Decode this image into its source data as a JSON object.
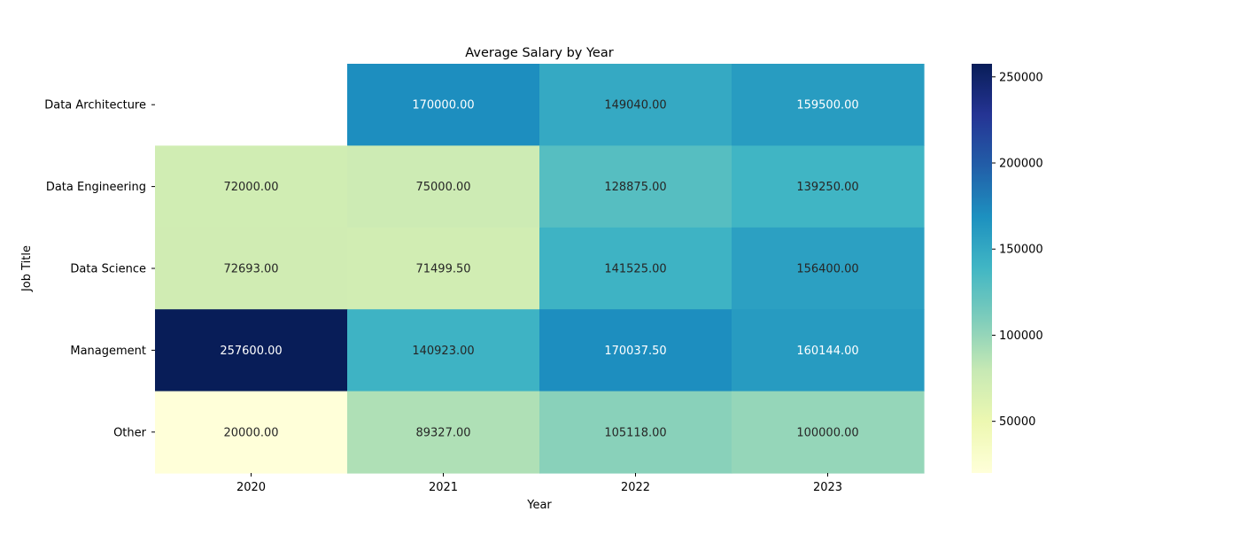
{
  "chart_data": {
    "type": "heatmap",
    "title": "Average Salary by Year",
    "xlabel": "Year",
    "ylabel": "Job Title",
    "x": [
      "2020",
      "2021",
      "2022",
      "2023"
    ],
    "y": [
      "Data Architecture",
      "Data Engineering",
      "Data Science",
      "Management",
      "Other"
    ],
    "values": [
      [
        null,
        170000.0,
        149040.0,
        159500.0
      ],
      [
        72000.0,
        75000.0,
        128875.0,
        139250.0
      ],
      [
        72693.0,
        71499.5,
        141525.0,
        156400.0
      ],
      [
        257600.0,
        140923.0,
        170037.5,
        160144.0
      ],
      [
        20000.0,
        89327.0,
        105118.0,
        100000.0
      ]
    ],
    "cell_labels": [
      [
        "",
        "170000.00",
        "149040.00",
        "159500.00"
      ],
      [
        "72000.00",
        "75000.00",
        "128875.00",
        "139250.00"
      ],
      [
        "72693.00",
        "71499.50",
        "141525.00",
        "156400.00"
      ],
      [
        "257600.00",
        "140923.00",
        "170037.50",
        "160144.00"
      ],
      [
        "20000.00",
        "89327.00",
        "105118.00",
        "100000.00"
      ]
    ],
    "colormap": "YlGnBu",
    "colorbar": {
      "range": [
        20000,
        257600
      ],
      "ticks": [
        50000,
        100000,
        150000,
        200000,
        250000
      ],
      "tick_labels": [
        "50000",
        "100000",
        "150000",
        "200000",
        "250000"
      ]
    },
    "colors": {
      "annotation_dark": "#262626",
      "annotation_light": "#ffffff",
      "text": "#000000"
    }
  }
}
